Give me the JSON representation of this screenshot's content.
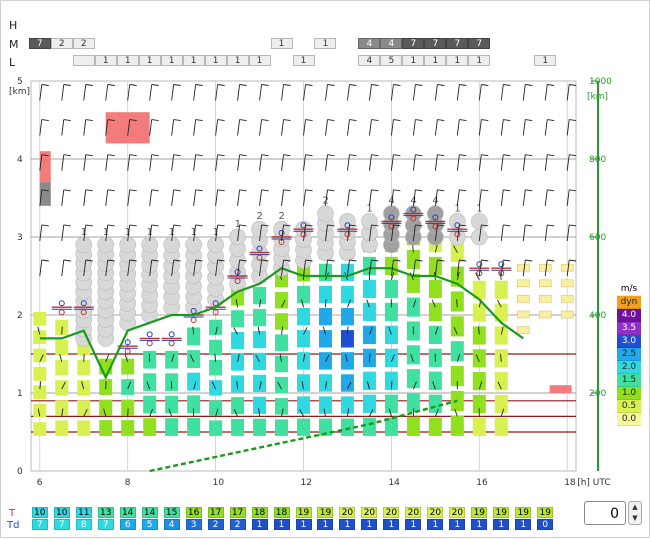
{
  "cloud_layers": {
    "labels": [
      "H",
      "M",
      "L"
    ],
    "medium": [
      {
        "hour": 6.0,
        "value": "7",
        "shade": "dark"
      },
      {
        "hour": 6.5,
        "value": "2",
        "shade": "light"
      },
      {
        "hour": 7.0,
        "value": "2",
        "shade": "light"
      },
      {
        "hour": 11.5,
        "value": "1",
        "shade": "light"
      },
      {
        "hour": 12.5,
        "value": "1",
        "shade": "light"
      },
      {
        "hour": 13.5,
        "value": "4",
        "shade": "mid"
      },
      {
        "hour": 14.0,
        "value": "4",
        "shade": "mid"
      },
      {
        "hour": 14.5,
        "value": "7",
        "shade": "dark"
      },
      {
        "hour": 15.0,
        "value": "7",
        "shade": "dark"
      },
      {
        "hour": 15.5,
        "value": "7",
        "shade": "dark"
      },
      {
        "hour": 16.0,
        "value": "7",
        "shade": "dark"
      }
    ],
    "low": [
      {
        "hour": 7.0,
        "value": ""
      },
      {
        "hour": 7.5,
        "value": "1"
      },
      {
        "hour": 8.0,
        "value": "1"
      },
      {
        "hour": 8.5,
        "value": "1"
      },
      {
        "hour": 9.0,
        "value": "1"
      },
      {
        "hour": 9.5,
        "value": "1"
      },
      {
        "hour": 10.0,
        "value": "1"
      },
      {
        "hour": 10.5,
        "value": "1"
      },
      {
        "hour": 11.0,
        "value": "1"
      },
      {
        "hour": 12.0,
        "value": "1"
      },
      {
        "hour": 13.5,
        "value": "4"
      },
      {
        "hour": 14.0,
        "value": "5"
      },
      {
        "hour": 14.5,
        "value": "1"
      },
      {
        "hour": 15.0,
        "value": "1"
      },
      {
        "hour": 15.5,
        "value": "1"
      },
      {
        "hour": 16.0,
        "value": "1"
      },
      {
        "hour": 17.5,
        "value": "1"
      }
    ]
  },
  "chart_data": {
    "type": "meteogram",
    "x_axis": {
      "label": "[h] UTC",
      "range": [
        5.8,
        18.2
      ],
      "ticks": [
        6,
        8,
        10,
        12,
        14,
        16,
        18
      ]
    },
    "y_left": {
      "label": "[km]",
      "range": [
        0,
        5
      ],
      "ticks": [
        0,
        1,
        2,
        3,
        4,
        5
      ]
    },
    "y_right": {
      "label": "[km]",
      "range": [
        0,
        1000
      ],
      "ticks": [
        200,
        400,
        600,
        800,
        1000
      ],
      "scale_factor": 5,
      "color": "#2a9a2a"
    },
    "thermal_columns": [
      {
        "hour": 6.0,
        "top_km": 2.1,
        "speeds": [
          0.6,
          0.5,
          0.5,
          0.6,
          0.5,
          0.5,
          0.6
        ]
      },
      {
        "hour": 6.5,
        "top_km": 2.0,
        "speeds": [
          0.6,
          0.5,
          0.5,
          0.6,
          0.6,
          0.5
        ]
      },
      {
        "hour": 7.0,
        "top_km": 2.0,
        "speeds": [
          0.6,
          0.6,
          0.5,
          0.6,
          0.6,
          0.5
        ]
      },
      {
        "hour": 7.5,
        "top_km": 1.5,
        "speeds": [
          1.0,
          1.2,
          1.0,
          1.1
        ]
      },
      {
        "hour": 8.0,
        "top_km": 1.5,
        "speeds": [
          1.2,
          1.4,
          1.5,
          1.3
        ]
      },
      {
        "hour": 8.5,
        "top_km": 1.6,
        "speeds": [
          1.4,
          1.6,
          1.7,
          1.5
        ]
      },
      {
        "hour": 9.0,
        "top_km": 1.6,
        "speeds": [
          1.5,
          1.7,
          1.8,
          1.6
        ]
      },
      {
        "hour": 9.5,
        "top_km": 1.9,
        "speeds": [
          1.6,
          1.8,
          2.0,
          1.8,
          1.6
        ]
      },
      {
        "hour": 10.0,
        "top_km": 2.0,
        "speeds": [
          1.7,
          1.9,
          2.1,
          1.9,
          1.7,
          1.5
        ]
      },
      {
        "hour": 10.5,
        "top_km": 2.4,
        "speeds": [
          1.7,
          1.9,
          2.2,
          2.2,
          2.0,
          1.8,
          1.4
        ]
      },
      {
        "hour": 11.0,
        "top_km": 2.7,
        "speeds": [
          1.8,
          2.0,
          2.3,
          2.4,
          2.2,
          1.9,
          1.6,
          1.3
        ]
      },
      {
        "hour": 11.5,
        "top_km": 2.9,
        "speeds": [
          1.6,
          1.8,
          1.5,
          1.7,
          1.6,
          1.4,
          1.3,
          1.1,
          1.0
        ]
      },
      {
        "hour": 12.0,
        "top_km": 3.0,
        "speeds": [
          1.8,
          2.0,
          2.2,
          2.4,
          2.3,
          2.0,
          1.7,
          1.4,
          1.1
        ]
      },
      {
        "hour": 12.5,
        "top_km": 3.0,
        "speeds": [
          1.9,
          2.1,
          2.4,
          2.6,
          2.8,
          2.6,
          2.3,
          1.9,
          1.5
        ]
      },
      {
        "hour": 13.0,
        "top_km": 3.0,
        "speeds": [
          1.9,
          2.2,
          2.5,
          2.8,
          3.0,
          2.8,
          2.4,
          2.0,
          1.6
        ]
      },
      {
        "hour": 13.5,
        "top_km": 3.1,
        "speeds": [
          1.8,
          2.1,
          2.4,
          2.6,
          2.5,
          2.3,
          2.0,
          1.7,
          1.3
        ]
      },
      {
        "hour": 14.0,
        "top_km": 3.1,
        "speeds": [
          1.6,
          1.9,
          2.1,
          2.2,
          2.1,
          1.9,
          1.7,
          1.4,
          1.1
        ]
      },
      {
        "hour": 14.5,
        "top_km": 3.2,
        "speeds": [
          1.4,
          1.6,
          1.8,
          1.9,
          1.8,
          1.6,
          1.4,
          1.2,
          1.0
        ]
      },
      {
        "hour": 15.0,
        "top_km": 3.1,
        "speeds": [
          1.3,
          1.5,
          1.6,
          1.7,
          1.6,
          1.4,
          1.2,
          1.0,
          0.8
        ]
      },
      {
        "hour": 15.5,
        "top_km": 3.0,
        "speeds": [
          1.1,
          1.3,
          1.4,
          1.5,
          1.4,
          1.2,
          1.0,
          0.8
        ]
      },
      {
        "hour": 16.0,
        "top_km": 2.5,
        "speeds": [
          0.9,
          1.0,
          1.1,
          1.1,
          1.0,
          0.8,
          0.7
        ]
      },
      {
        "hour": 16.5,
        "top_km": 2.5,
        "speeds": [
          0.6,
          0.6,
          0.7,
          0.6,
          0.6,
          0.5,
          0.5
        ]
      }
    ],
    "small_columns": [
      {
        "hour": 17.0,
        "cells_km": [
          2.6,
          2.4,
          2.2,
          2.0,
          1.8
        ]
      },
      {
        "hour": 17.5,
        "cells_km": [
          2.6,
          2.4,
          2.2,
          2.0
        ]
      },
      {
        "hour": 18.0,
        "cells_km": [
          2.6,
          2.4,
          2.2,
          2.0
        ]
      }
    ],
    "cumulus": [
      {
        "hour": 7.0,
        "base_km": 1.7,
        "top_km": 2.9,
        "label": "1"
      },
      {
        "hour": 7.5,
        "base_km": 1.7,
        "top_km": 2.9,
        "label": "1"
      },
      {
        "hour": 8.0,
        "base_km": 1.9,
        "top_km": 2.9,
        "label": "1"
      },
      {
        "hour": 8.5,
        "base_km": 2.0,
        "top_km": 2.9,
        "label": "1"
      },
      {
        "hour": 9.0,
        "base_km": 2.1,
        "top_km": 2.9,
        "label": "1"
      },
      {
        "hour": 9.5,
        "base_km": 2.1,
        "top_km": 2.9,
        "label": "1"
      },
      {
        "hour": 10.0,
        "base_km": 2.2,
        "top_km": 2.9,
        "label": "1"
      },
      {
        "hour": 10.5,
        "base_km": 2.4,
        "top_km": 3.0,
        "label": "1"
      },
      {
        "hour": 11.0,
        "base_km": 2.5,
        "top_km": 3.1,
        "label": "2"
      },
      {
        "hour": 11.5,
        "base_km": 2.6,
        "top_km": 3.1,
        "label": "2"
      },
      {
        "hour": 12.0,
        "base_km": 2.7,
        "top_km": 3.1,
        "label": ""
      },
      {
        "hour": 12.5,
        "base_km": 2.8,
        "top_km": 3.3,
        "label": "2"
      },
      {
        "hour": 13.0,
        "base_km": 2.8,
        "top_km": 3.2,
        "label": ""
      },
      {
        "hour": 13.5,
        "base_km": 2.9,
        "top_km": 3.2,
        "label": "1"
      },
      {
        "hour": 14.0,
        "base_km": 2.9,
        "top_km": 3.3,
        "label": "4"
      },
      {
        "hour": 14.5,
        "base_km": 3.0,
        "top_km": 3.3,
        "label": "4"
      },
      {
        "hour": 15.0,
        "base_km": 3.0,
        "top_km": 3.3,
        "label": "4"
      },
      {
        "hour": 15.5,
        "base_km": 3.0,
        "top_km": 3.2,
        "label": "1"
      },
      {
        "hour": 16.0,
        "base_km": 3.0,
        "top_km": 3.2,
        "label": "1"
      }
    ],
    "red_boxes": [
      {
        "hour0": 6.0,
        "hour1": 6.25,
        "km0": 3.7,
        "km1": 4.1,
        "color": "#f27c7c"
      },
      {
        "hour0": 6.0,
        "hour1": 6.25,
        "km0": 3.4,
        "km1": 3.7,
        "color": "#8a8a8a"
      },
      {
        "hour0": 7.5,
        "hour1": 8.5,
        "km0": 4.2,
        "km1": 4.6,
        "color": "#f27c7c"
      },
      {
        "hour0": 17.6,
        "hour1": 18.1,
        "km0": 1.0,
        "km1": 1.1,
        "color": "#f27c7c"
      }
    ],
    "dark_red_lines_km": [
      0.5,
      0.7,
      0.9,
      1.5
    ],
    "green_line_km": [
      [
        6.0,
        1.7
      ],
      [
        6.5,
        1.7
      ],
      [
        7.0,
        1.8
      ],
      [
        7.5,
        1.2
      ],
      [
        8.0,
        1.8
      ],
      [
        8.5,
        1.9
      ],
      [
        9.0,
        2.0
      ],
      [
        9.5,
        2.0
      ],
      [
        10.0,
        2.1
      ],
      [
        10.5,
        2.3
      ],
      [
        11.0,
        2.4
      ],
      [
        11.5,
        2.6
      ],
      [
        12.0,
        2.5
      ],
      [
        12.5,
        2.5
      ],
      [
        13.0,
        2.5
      ],
      [
        13.5,
        2.6
      ],
      [
        14.0,
        2.6
      ],
      [
        14.5,
        2.5
      ],
      [
        15.0,
        2.5
      ],
      [
        15.5,
        2.4
      ],
      [
        16.0,
        2.2
      ],
      [
        16.5,
        1.9
      ],
      [
        17.0,
        1.7
      ]
    ],
    "green_dashed_km": [
      [
        8.5,
        0.0
      ],
      [
        11.0,
        0.3
      ],
      [
        13.5,
        0.6
      ],
      [
        15.5,
        0.9
      ]
    ],
    "legend": {
      "title": "m/s",
      "entries": [
        {
          "label": "dyn",
          "color": "#f0a020"
        },
        {
          "label": "4.0",
          "color": "#7010a0"
        },
        {
          "label": "3.5",
          "color": "#9030c8"
        },
        {
          "label": "3.0",
          "color": "#2050d0"
        },
        {
          "label": "2.5",
          "color": "#20a8e8"
        },
        {
          "label": "2.0",
          "color": "#30d8e0"
        },
        {
          "label": "1.5",
          "color": "#40e0a0"
        },
        {
          "label": "1.0",
          "color": "#90e020"
        },
        {
          "label": "0.5",
          "color": "#d8f050"
        },
        {
          "label": "0.0",
          "color": "#f8f8a0"
        }
      ]
    },
    "surface": {
      "T_label": "T",
      "Td_label": "Td",
      "T": [
        "10",
        "10",
        "11",
        "13",
        "14",
        "14",
        "15",
        "16",
        "17",
        "17",
        "18",
        "18",
        "19",
        "19",
        "20",
        "20",
        "20",
        "20",
        "20",
        "20",
        "19",
        "19",
        "19",
        "19"
      ],
      "Td": [
        "7",
        "7",
        "8",
        "7",
        "6",
        "5",
        "4",
        "3",
        "2",
        "2",
        "1",
        "1",
        "1",
        "1",
        "1",
        "1",
        "1",
        "1",
        "1",
        "1",
        "1",
        "1",
        "1",
        "0"
      ],
      "T_colors": [
        "#30d8e0",
        "#30d8e0",
        "#30d8e0",
        "#40e0a0",
        "#40e0a0",
        "#40e0a0",
        "#40e0a0",
        "#90e020",
        "#90e020",
        "#90e020",
        "#90e020",
        "#90e020",
        "#b8e830",
        "#b8e830",
        "#d8f050",
        "#d8f050",
        "#d8f050",
        "#d8f050",
        "#d8f050",
        "#d8f050",
        "#b8e830",
        "#b8e830",
        "#b8e830",
        "#b8e830"
      ],
      "Td_colors": [
        "#30d8e0",
        "#30d8e0",
        "#30d8e0",
        "#30d8e0",
        "#20a8e8",
        "#20a8e8",
        "#2090e0",
        "#2070d8",
        "#2060d0",
        "#2060d0",
        "#2050c8",
        "#2050c8",
        "#2050c8",
        "#2050c8",
        "#2050c8",
        "#2050c8",
        "#2050c8",
        "#2050c8",
        "#2050c8",
        "#2050c8",
        "#2050c8",
        "#2050c8",
        "#2050c8",
        "#2050c8"
      ]
    }
  },
  "controls": {
    "stepper_value": "0",
    "up_glyph": "▲",
    "down_glyph": "▼"
  }
}
